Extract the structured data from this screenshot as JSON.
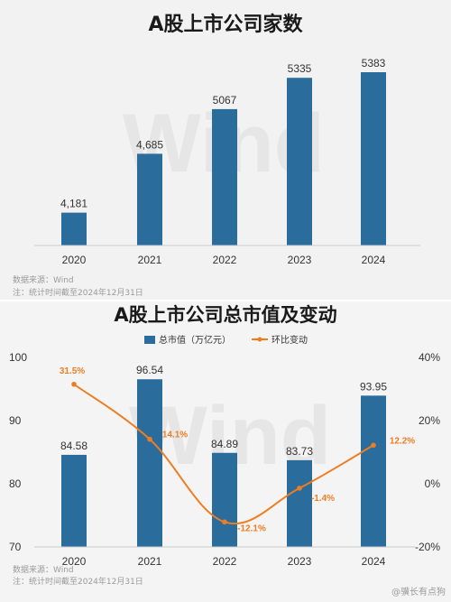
{
  "chart_data": [
    {
      "type": "bar",
      "title": "A股上市公司家数",
      "categories": [
        "2020",
        "2021",
        "2022",
        "2023",
        "2024"
      ],
      "values": [
        4181,
        4685,
        5067,
        5335,
        5383
      ],
      "value_labels": [
        "4,181",
        "4,685",
        "5067",
        "5335",
        "5383"
      ],
      "bar_color": "#2a6d9c",
      "y_axis_visible": false,
      "source_note": "数据来源：Wind",
      "date_note": "注：统计时间截至2024年12月31日",
      "watermark": "Wind"
    },
    {
      "type": "bar+line",
      "title": "A股上市公司总市值及变动",
      "categories": [
        "2020",
        "2021",
        "2022",
        "2023",
        "2024"
      ],
      "series": [
        {
          "name": "总市值（万亿元）",
          "type": "bar",
          "values": [
            84.58,
            96.54,
            84.89,
            83.73,
            93.95
          ],
          "labels": [
            "84.58",
            "96.54",
            "84.89",
            "83.73",
            "93.95"
          ],
          "color": "#2a6d9c",
          "axis": "left"
        },
        {
          "name": "环比变动",
          "type": "line",
          "values": [
            31.5,
            14.1,
            -12.1,
            -1.4,
            12.2
          ],
          "labels": [
            "31.5%",
            "14.1%",
            "-12.1%",
            "-1.4%",
            "12.2%"
          ],
          "color": "#ee7d22",
          "axis": "right"
        }
      ],
      "left_axis": {
        "min": 70,
        "max": 100,
        "ticks": [
          "70",
          "80",
          "90",
          "100"
        ]
      },
      "right_axis": {
        "min": -20,
        "max": 40,
        "ticks": [
          "-20%",
          "0%",
          "20%",
          "40%"
        ]
      },
      "legend_position": "top-center",
      "source_note": "数据来源：Wind",
      "date_note": "注：统计时间截至2024年12月31日",
      "watermark": "Wind",
      "corner_text": "@骥长有点狗"
    }
  ]
}
